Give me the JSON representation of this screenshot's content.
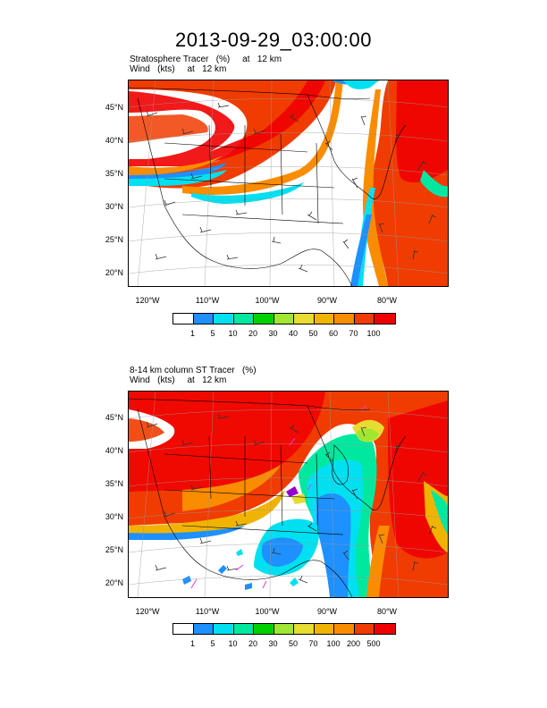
{
  "title": "2013-09-29_03:00:00",
  "panels": [
    {
      "line1": "Stratosphere Tracer   (%)     at   12 km",
      "line2": "Wind   (kts)     at   12 km",
      "lat_labels": [
        "45°N",
        "40°N",
        "35°N",
        "30°N",
        "25°N",
        "20°N"
      ],
      "lon_labels": [
        "120°W",
        "110°W",
        "100°W",
        "90°W",
        "80°W"
      ],
      "colorbar": {
        "colors": [
          "#ffffff",
          "#1e90ff",
          "#00e0f0",
          "#00e8a0",
          "#00d000",
          "#a0e632",
          "#e6dc32",
          "#f0b400",
          "#fa8c00",
          "#f03c00",
          "#f00000"
        ],
        "labels": [
          "1",
          "5",
          "10",
          "20",
          "30",
          "40",
          "50",
          "60",
          "70",
          "100"
        ]
      }
    },
    {
      "line1": "8-14 km column ST Tracer   (%)",
      "line2": "Wind   (kts)     at   12 km",
      "lat_labels": [
        "45°N",
        "40°N",
        "35°N",
        "30°N",
        "25°N",
        "20°N"
      ],
      "lon_labels": [
        "120°W",
        "110°W",
        "100°W",
        "90°W",
        "80°W"
      ],
      "colorbar": {
        "colors": [
          "#ffffff",
          "#1e90ff",
          "#00e0f0",
          "#00e8a0",
          "#00d000",
          "#a0e632",
          "#e6dc32",
          "#f0b400",
          "#fa8c00",
          "#f03c00",
          "#f00000"
        ],
        "labels": [
          "1",
          "5",
          "10",
          "20",
          "30",
          "50",
          "70",
          "100",
          "200",
          "500"
        ]
      }
    }
  ]
}
